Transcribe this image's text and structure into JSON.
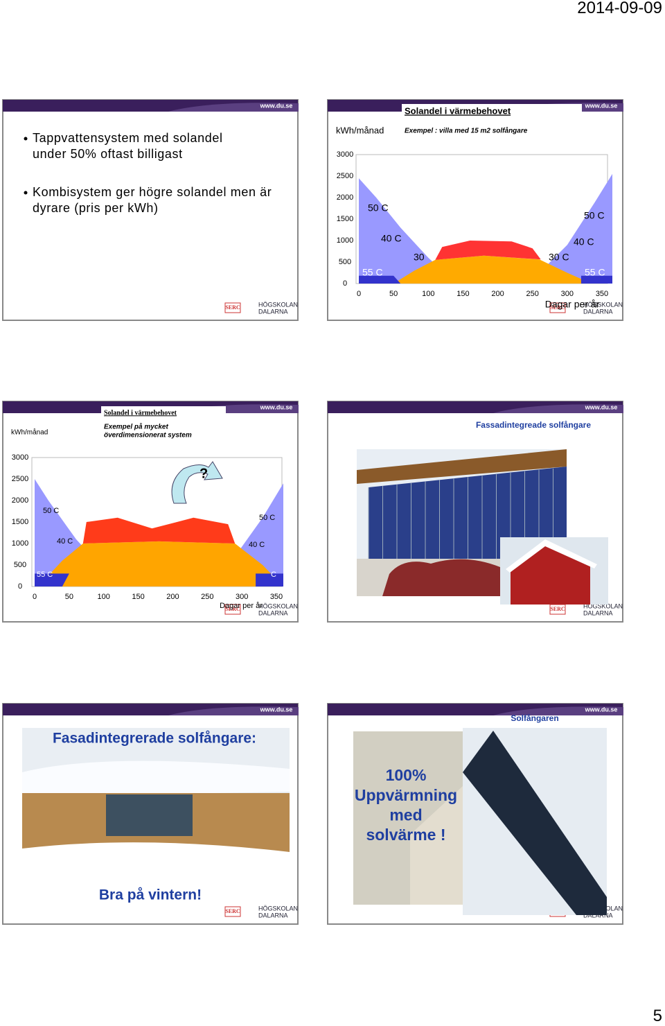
{
  "date": "2014-09-09",
  "page_number": "5",
  "slides": [
    {
      "type": "bullets",
      "header": "www.du.se",
      "bullets": [
        "Tappvattensystem med solandel under 50% oftast billigast",
        "Kombisystem ger högre solandel men är dyrare (pris per kWh)"
      ],
      "logo": [
        "SERC",
        "HÖGSKOLAN",
        "DALARNA"
      ]
    },
    {
      "type": "chart",
      "header": "www.du.se",
      "title": "Solandel i värmebehovet",
      "subtitle": [
        "Exempel : villa med 15 m2 solfångare"
      ],
      "y_label": "kWh/månad",
      "yticks": [
        3000,
        2500,
        2000,
        1500,
        1000,
        500,
        0
      ],
      "xticks": [
        0,
        50,
        100,
        150,
        200,
        250,
        300,
        350
      ],
      "x_label": "Dagar per år",
      "region_labels": [
        "50 C",
        "40 C",
        "30",
        "55 C",
        "50 C",
        "40 C",
        "30 C",
        "55 C"
      ],
      "logo": [
        "SERC",
        "HÖGSKOLAN",
        "DALARNA"
      ]
    },
    {
      "type": "chart2",
      "header": "www.du.se",
      "title": "Solandel i värmebehovet",
      "subtitle": [
        "Exempel på mycket",
        "överdimensionerat system"
      ],
      "y_label": "kWh/månad",
      "yticks": [
        3000,
        2500,
        2000,
        1500,
        1000,
        500,
        0
      ],
      "xticks": [
        0,
        50,
        100,
        150,
        200,
        250,
        300,
        350
      ],
      "x_label": "Dagar per år",
      "region_labels": [
        "50 C",
        "40 C",
        "55 C",
        "50 C",
        "40 C",
        "C",
        "?"
      ],
      "logo": [
        "SERC",
        "HÖGSKOLAN",
        "DALARNA"
      ]
    },
    {
      "type": "photo1",
      "header": "www.du.se",
      "title": "Fassadintegreade solfångare",
      "logo": [
        "SERC",
        "HÖGSKOLAN",
        "DALARNA"
      ]
    },
    {
      "type": "photo2",
      "header": "www.du.se",
      "title": "Fasadintegrerade solfångare:",
      "caption": "Bra på vintern!",
      "logo": [
        "SERC",
        "HÖGSKOLAN",
        "DALARNA"
      ]
    },
    {
      "type": "photo3",
      "header": "www.du.se",
      "title": "Solfångaren",
      "caption": [
        "100%",
        "Uppvärmning",
        "med",
        "solvärme !"
      ],
      "logo": [
        "SERC",
        "HÖGSKOLAN",
        "DALARNA"
      ]
    }
  ]
}
